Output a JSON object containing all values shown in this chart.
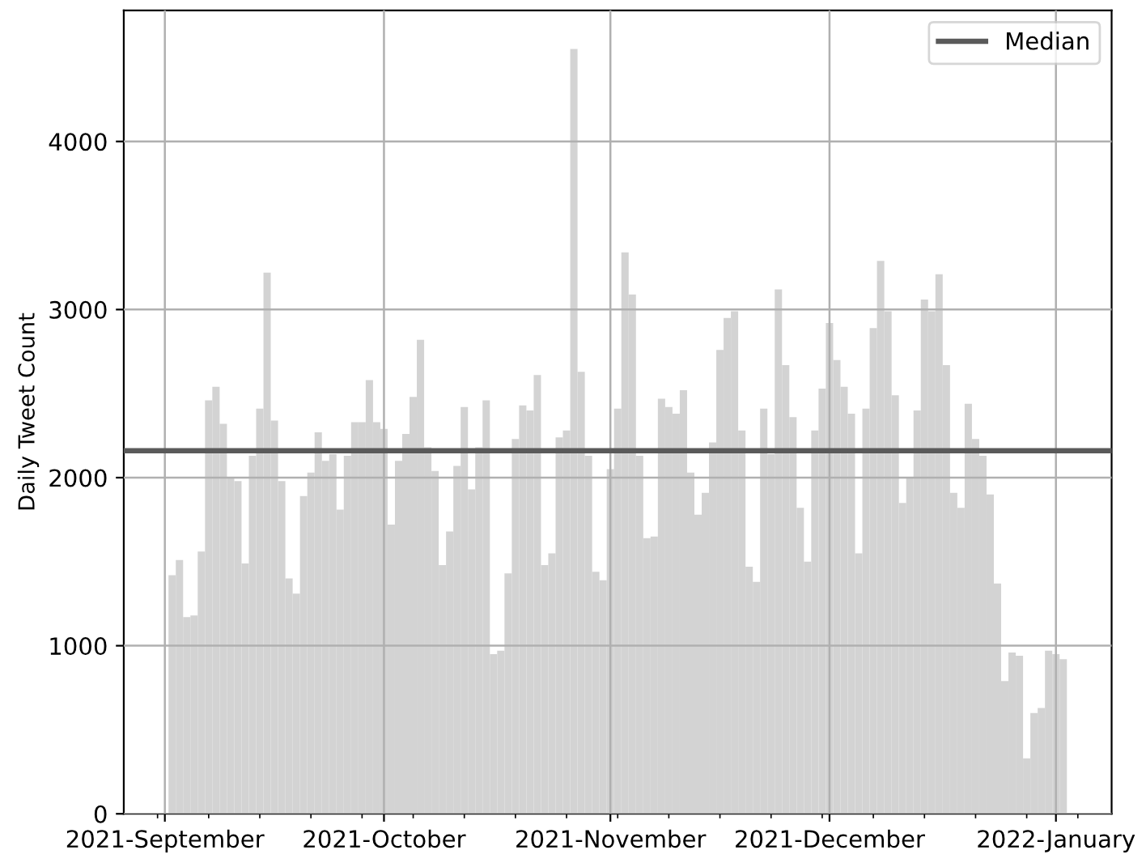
{
  "chart_data": {
    "type": "bar",
    "ylabel": "Daily Tweet Count",
    "color": "#d3d3d3",
    "x": [
      "2021-09-02",
      "2021-09-03",
      "2021-09-04",
      "2021-09-05",
      "2021-09-06",
      "2021-09-07",
      "2021-09-08",
      "2021-09-09",
      "2021-09-10",
      "2021-09-11",
      "2021-09-12",
      "2021-09-13",
      "2021-09-14",
      "2021-09-15",
      "2021-09-16",
      "2021-09-17",
      "2021-09-18",
      "2021-09-19",
      "2021-09-20",
      "2021-09-21",
      "2021-09-22",
      "2021-09-23",
      "2021-09-24",
      "2021-09-25",
      "2021-09-26",
      "2021-09-27",
      "2021-09-28",
      "2021-09-29",
      "2021-09-30",
      "2021-10-01",
      "2021-10-02",
      "2021-10-03",
      "2021-10-04",
      "2021-10-05",
      "2021-10-06",
      "2021-10-07",
      "2021-10-08",
      "2021-10-09",
      "2021-10-10",
      "2021-10-11",
      "2021-10-12",
      "2021-10-13",
      "2021-10-14",
      "2021-10-15",
      "2021-10-16",
      "2021-10-17",
      "2021-10-18",
      "2021-10-19",
      "2021-10-20",
      "2021-10-21",
      "2021-10-22",
      "2021-10-23",
      "2021-10-24",
      "2021-10-25",
      "2021-10-26",
      "2021-10-27",
      "2021-10-28",
      "2021-10-29",
      "2021-10-30",
      "2021-10-31",
      "2021-11-01",
      "2021-11-02",
      "2021-11-03",
      "2021-11-04",
      "2021-11-05",
      "2021-11-06",
      "2021-11-07",
      "2021-11-08",
      "2021-11-09",
      "2021-11-10",
      "2021-11-11",
      "2021-11-12",
      "2021-11-13",
      "2021-11-14",
      "2021-11-15",
      "2021-11-16",
      "2021-11-17",
      "2021-11-18",
      "2021-11-19",
      "2021-11-20",
      "2021-11-21",
      "2021-11-22",
      "2021-11-23",
      "2021-11-24",
      "2021-11-25",
      "2021-11-26",
      "2021-11-27",
      "2021-11-28",
      "2021-11-29",
      "2021-11-30",
      "2021-12-01",
      "2021-12-02",
      "2021-12-03",
      "2021-12-04",
      "2021-12-05",
      "2021-12-06",
      "2021-12-07",
      "2021-12-08",
      "2021-12-09",
      "2021-12-10",
      "2021-12-11",
      "2021-12-12",
      "2021-12-13",
      "2021-12-14",
      "2021-12-15",
      "2021-12-16",
      "2021-12-17",
      "2021-12-18",
      "2021-12-19",
      "2021-12-20",
      "2021-12-21",
      "2021-12-22",
      "2021-12-23",
      "2021-12-24",
      "2021-12-25",
      "2021-12-26",
      "2021-12-27",
      "2021-12-28",
      "2021-12-29",
      "2021-12-30",
      "2021-12-31",
      "2022-01-01",
      "2022-01-02"
    ],
    "values": [
      1420,
      1510,
      1170,
      1180,
      1560,
      2460,
      2540,
      2320,
      2000,
      1980,
      1490,
      2130,
      2410,
      3220,
      2340,
      1980,
      1400,
      1310,
      1890,
      2030,
      2270,
      2100,
      2140,
      1810,
      2130,
      2330,
      2330,
      2580,
      2330,
      2290,
      1720,
      2100,
      2260,
      2480,
      2820,
      2180,
      2040,
      1480,
      1680,
      2070,
      2420,
      1930,
      2180,
      2460,
      950,
      970,
      1430,
      2230,
      2430,
      2400,
      2610,
      1480,
      1550,
      2240,
      2280,
      4550,
      2630,
      2130,
      1440,
      1390,
      2050,
      2410,
      3340,
      3090,
      2130,
      1640,
      1650,
      2470,
      2420,
      2380,
      2520,
      2030,
      1780,
      1910,
      2210,
      2760,
      2950,
      2990,
      2280,
      1470,
      1380,
      2410,
      2140,
      3120,
      2670,
      2360,
      1820,
      1500,
      2280,
      2530,
      2920,
      2700,
      2540,
      2380,
      1550,
      2410,
      2890,
      3290,
      2990,
      2490,
      1850,
      2000,
      2400,
      3060,
      2990,
      3210,
      2670,
      1910,
      1820,
      2440,
      2230,
      2130,
      1900,
      1370,
      790,
      960,
      940,
      330,
      600,
      630,
      970,
      950,
      920
    ],
    "xlim": [
      "2021-08-26T09:00",
      "2022-01-08T15:00"
    ],
    "xticks": [
      {
        "value": "2021-08-31",
        "label": null
      },
      {
        "value": "2021-09-01",
        "label": "2021-September"
      },
      {
        "value": "2021-09-07",
        "label": null
      },
      {
        "value": "2021-09-14",
        "label": null
      },
      {
        "value": "2021-09-21",
        "label": null
      },
      {
        "value": "2021-09-28",
        "label": null
      },
      {
        "value": "2021-10-01",
        "label": "2021-October"
      },
      {
        "value": "2021-10-05",
        "label": null
      },
      {
        "value": "2021-10-12",
        "label": null
      },
      {
        "value": "2021-10-19",
        "label": null
      },
      {
        "value": "2021-10-26",
        "label": null
      },
      {
        "value": "2021-11-01",
        "label": "2021-November"
      },
      {
        "value": "2021-11-02",
        "label": null
      },
      {
        "value": "2021-11-09",
        "label": null
      },
      {
        "value": "2021-11-16",
        "label": null
      },
      {
        "value": "2021-11-23",
        "label": null
      },
      {
        "value": "2021-11-30",
        "label": null
      },
      {
        "value": "2021-12-01",
        "label": "2021-December"
      },
      {
        "value": "2021-12-07",
        "label": null
      },
      {
        "value": "2021-12-14",
        "label": null
      },
      {
        "value": "2021-12-21",
        "label": null
      },
      {
        "value": "2021-12-28",
        "label": null
      },
      {
        "value": "2022-01-01",
        "label": "2022-January"
      },
      {
        "value": "2022-01-04",
        "label": null
      }
    ],
    "ylim": [
      0,
      4780
    ],
    "yticks": [
      0,
      1000,
      2000,
      3000,
      4000
    ],
    "grid": true,
    "legend": "top right",
    "ref_lines": [
      {
        "axis": "y",
        "value": 2160,
        "label": "Median",
        "color": "#5a5a5a"
      }
    ]
  }
}
